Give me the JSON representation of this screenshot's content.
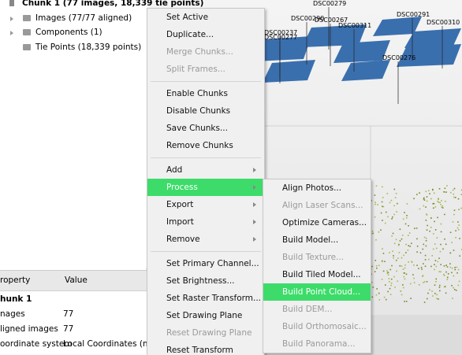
{
  "tree": {
    "chunk": "Chunk 1 (77 images, 18,339 tie points)",
    "items": [
      "Images (77/77 aligned)",
      "Components (1)",
      "Tie Points (18,339 points)"
    ]
  },
  "properties": {
    "header": [
      "roperty",
      "Value"
    ],
    "rows": [
      [
        "hunk 1"
      ],
      [
        "nages",
        "77"
      ],
      [
        "ligned images",
        "77"
      ],
      [
        "oordinate system",
        "Local Coordinates (m)"
      ]
    ]
  },
  "view": {
    "cameras": [
      "DSC00279",
      "DSC00290",
      "DSC00267",
      "DSC00291",
      "DSC00310",
      "DSC00237",
      "DSC00277",
      "DSC00311",
      "DSC00276"
    ]
  },
  "menu": {
    "groups": [
      {
        "items": [
          {
            "label": "Set Active"
          },
          {
            "label": "Duplicate..."
          },
          {
            "label": "Merge Chunks...",
            "disabled": true
          },
          {
            "label": "Split Frames...",
            "disabled": true
          }
        ]
      },
      {
        "items": [
          {
            "label": "Enable Chunks"
          },
          {
            "label": "Disable Chunks"
          },
          {
            "label": "Save Chunks..."
          },
          {
            "label": "Remove Chunks"
          }
        ]
      },
      {
        "items": [
          {
            "label": "Add",
            "submenu": true
          },
          {
            "label": "Process",
            "submenu": true,
            "highlighted": true
          },
          {
            "label": "Export",
            "submenu": true
          },
          {
            "label": "Import",
            "submenu": true
          },
          {
            "label": "Remove",
            "submenu": true
          }
        ]
      },
      {
        "items": [
          {
            "label": "Set Primary Channel..."
          },
          {
            "label": "Set Brightness..."
          },
          {
            "label": "Set Raster Transform..."
          },
          {
            "label": "Set Drawing Plane"
          },
          {
            "label": "Reset Drawing Plane",
            "disabled": true
          },
          {
            "label": "Reset Transform"
          }
        ]
      }
    ]
  },
  "submenu": {
    "items": [
      {
        "label": "Align Photos..."
      },
      {
        "label": "Align Laser Scans...",
        "disabled": true
      },
      {
        "label": "Optimize Cameras..."
      },
      {
        "label": "Build Model..."
      },
      {
        "label": "Build Texture...",
        "disabled": true
      },
      {
        "label": "Build Tiled Model..."
      },
      {
        "label": "Build Point Cloud...",
        "highlighted": true
      },
      {
        "label": "Build DEM...",
        "disabled": true
      },
      {
        "label": "Build Orthomosaic...",
        "disabled": true
      },
      {
        "label": "Build Panorama...",
        "disabled": true
      }
    ]
  }
}
